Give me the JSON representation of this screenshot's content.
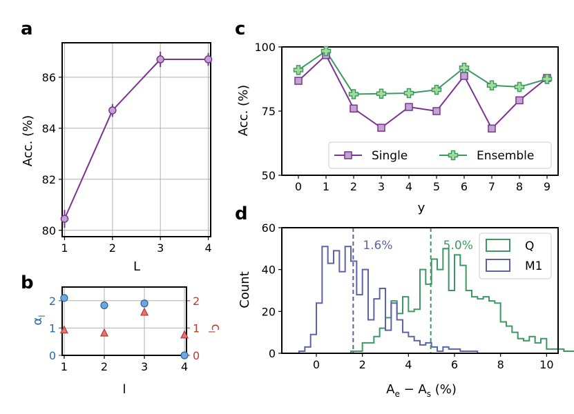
{
  "panels": {
    "a": {
      "letter": "a",
      "xlabel": "L",
      "ylabel": "Acc. (%)"
    },
    "b": {
      "letter": "b",
      "xlabel": "l",
      "ylabel_left": "α",
      "ylabel_left_sub": "l",
      "ylabel_right": "c",
      "ylabel_right_sub": "l"
    },
    "c": {
      "letter": "c",
      "xlabel": "y",
      "ylabel": "Acc. (%)"
    },
    "d": {
      "letter": "d",
      "xlabel_main": "A",
      "xlabel_sub1": "e",
      "xlabel_mid": " − A",
      "xlabel_sub2": "s",
      "xlabel_tail": " (%)",
      "ylabel": "Count"
    }
  },
  "colors": {
    "purple": "#7b3294",
    "purple_fill": "#c2a5cf",
    "green": "#3a9960",
    "green_fill": "#a6dba0",
    "blue": "#5b62a8",
    "alpha_blue": "#6fa8dc",
    "red": "#c0392b",
    "grid": "#b0b0b0"
  },
  "chart_data": [
    {
      "id": "a",
      "type": "line",
      "x": [
        1,
        2,
        3,
        4
      ],
      "values": [
        80.45,
        84.7,
        86.7,
        86.7
      ],
      "errors": [
        0.35,
        0.25,
        0.3,
        0.25
      ],
      "xlim": [
        0.95,
        4.05
      ],
      "ylim": [
        79.75,
        87.35
      ],
      "xticks": [
        "1",
        "2",
        "3",
        "4"
      ],
      "yticks": [
        "80",
        "82",
        "84",
        "86"
      ],
      "xlabel": "L",
      "ylabel": "Acc. (%)",
      "grid": true
    },
    {
      "id": "b",
      "type": "scatter",
      "x": [
        1,
        2,
        3,
        4
      ],
      "series": [
        {
          "name": "α",
          "axis": "left",
          "marker": "circle",
          "values": [
            2.1,
            1.83,
            1.9,
            0.0
          ]
        },
        {
          "name": "c",
          "axis": "right",
          "marker": "triangle",
          "values": [
            0.93,
            0.82,
            1.58,
            0.75
          ]
        }
      ],
      "xlim": [
        0.95,
        4.05
      ],
      "ylim": [
        0,
        2.5
      ],
      "xticks": [
        "1",
        "2",
        "3",
        "4"
      ],
      "yticks_left": [
        "0",
        "1",
        "2"
      ],
      "yticks_right": [
        "0",
        "1",
        "2"
      ],
      "xlabel": "l",
      "grid": true
    },
    {
      "id": "c",
      "type": "line",
      "categories": [
        "0",
        "1",
        "2",
        "3",
        "4",
        "5",
        "6",
        "7",
        "8",
        "9"
      ],
      "series": [
        {
          "name": "Single",
          "marker": "square",
          "values": [
            86.8,
            96.8,
            76.0,
            68.5,
            76.6,
            75.0,
            88.7,
            68.2,
            79.2,
            87.9
          ]
        },
        {
          "name": "Ensemble",
          "marker": "plus",
          "values": [
            91.0,
            98.4,
            81.6,
            81.8,
            82.0,
            83.3,
            91.9,
            85.0,
            84.4,
            87.5
          ]
        }
      ],
      "ylim": [
        50,
        100
      ],
      "yticks": [
        "50",
        "75",
        "100"
      ],
      "xlabel": "y",
      "ylabel": "Acc. (%)",
      "legend": "lower-right",
      "grid": false
    },
    {
      "id": "d",
      "type": "histogram",
      "bin_width": 0.25,
      "series": [
        {
          "name": "Q",
          "start": 1.5,
          "counts": [
            1,
            1,
            5,
            5,
            8,
            12,
            17,
            25,
            19,
            27,
            20,
            21,
            40,
            33,
            45,
            40,
            50,
            30,
            47,
            42,
            30,
            27,
            26,
            27,
            25,
            24,
            15,
            13,
            10,
            7,
            6,
            8,
            5,
            7,
            2,
            2,
            2,
            1,
            1,
            1,
            1,
            1,
            1,
            1
          ],
          "mean_line": 4.97,
          "mean_label": "5.0%"
        },
        {
          "name": "M1",
          "start": -0.75,
          "counts": [
            1,
            3,
            9,
            24,
            51,
            43,
            49,
            39,
            51,
            44,
            28,
            40,
            16,
            26,
            31,
            11,
            24,
            16,
            10,
            8,
            6,
            4,
            5,
            3,
            1,
            3,
            2,
            2,
            1,
            1,
            1
          ],
          "mean_line": 1.6,
          "mean_label": "1.6%"
        }
      ],
      "xlim": [
        -1.5,
        10.5
      ],
      "ylim": [
        0,
        60
      ],
      "xticks": [
        "0",
        "2",
        "4",
        "6",
        "8",
        "10"
      ],
      "yticks": [
        "0",
        "20",
        "40",
        "60"
      ],
      "xlabel": "Ae − As (%)",
      "ylabel": "Count",
      "legend": "top-right"
    }
  ]
}
